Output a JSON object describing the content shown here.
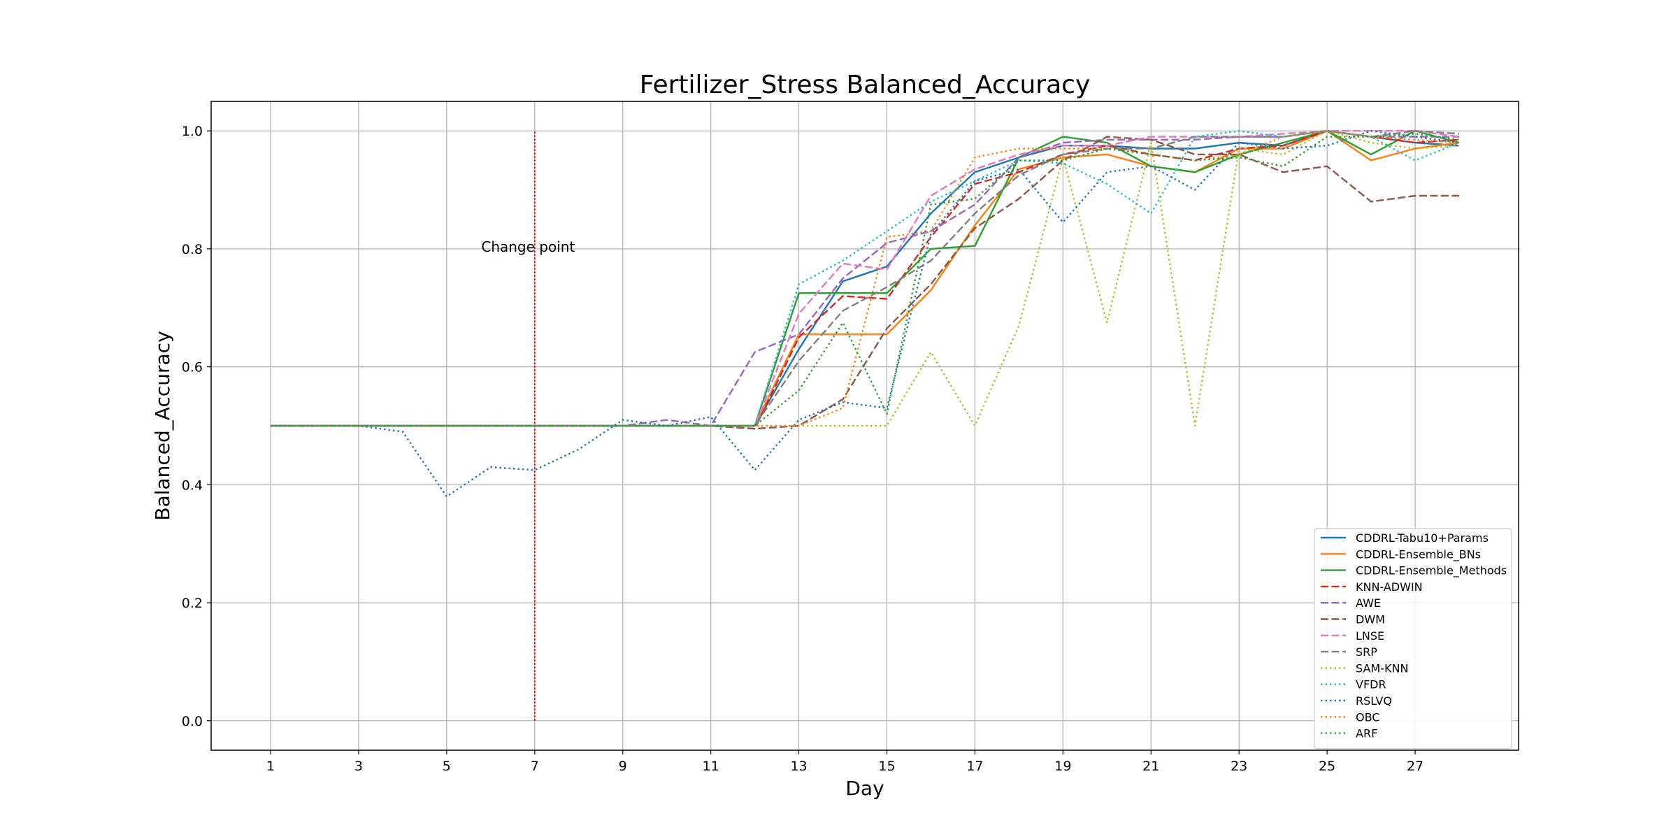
{
  "chart_data": {
    "type": "line",
    "title": "Fertilizer_Stress Balanced_Accuracy",
    "xlabel": "Day",
    "ylabel": "Balanced_Accuracy",
    "xlim": [
      -0.35,
      29.35
    ],
    "ylim": [
      -0.05,
      1.05
    ],
    "x_ticks": [
      1,
      3,
      5,
      7,
      9,
      11,
      13,
      15,
      17,
      19,
      21,
      23,
      25,
      27
    ],
    "y_ticks": [
      0.0,
      0.2,
      0.4,
      0.6,
      0.8,
      1.0
    ],
    "y_tick_labels": [
      "0.0",
      "0.2",
      "0.4",
      "0.6",
      "0.8",
      "1.0"
    ],
    "grid": true,
    "legend_position": "lower-right",
    "x": [
      1,
      2,
      3,
      4,
      5,
      6,
      7,
      8,
      9,
      10,
      11,
      12,
      13,
      14,
      15,
      16,
      17,
      18,
      19,
      20,
      21,
      22,
      23,
      24,
      25,
      26,
      27,
      28
    ],
    "annotations": [
      {
        "type": "vline",
        "x": 7,
        "y0": 0,
        "y1": 1,
        "color": "#ff0000",
        "style": "dotted"
      },
      {
        "type": "text",
        "text": "Change point",
        "x": 6.85,
        "y": 0.795
      }
    ],
    "series": [
      {
        "name": "CDDRL-Tabu10+Params",
        "color": "#1f77b4",
        "style": "solid",
        "values": [
          0.5,
          0.5,
          0.5,
          0.5,
          0.5,
          0.5,
          0.5,
          0.5,
          0.5,
          0.5,
          0.5,
          0.5,
          0.63,
          0.745,
          0.77,
          0.86,
          0.93,
          0.955,
          0.975,
          0.975,
          0.97,
          0.97,
          0.98,
          0.975,
          1.0,
          0.99,
          0.98,
          0.975
        ]
      },
      {
        "name": "CDDRL-Ensemble_BNs",
        "color": "#ff7f0e",
        "style": "solid",
        "values": [
          0.5,
          0.5,
          0.5,
          0.5,
          0.5,
          0.5,
          0.5,
          0.5,
          0.5,
          0.5,
          0.5,
          0.5,
          0.655,
          0.655,
          0.655,
          0.73,
          0.84,
          0.935,
          0.955,
          0.96,
          0.94,
          0.93,
          0.97,
          0.97,
          1.0,
          0.95,
          0.97,
          0.98
        ]
      },
      {
        "name": "CDDRL-Ensemble_Methods",
        "color": "#2ca02c",
        "style": "solid",
        "values": [
          0.5,
          0.5,
          0.5,
          0.5,
          0.5,
          0.5,
          0.5,
          0.5,
          0.5,
          0.5,
          0.5,
          0.5,
          0.725,
          0.725,
          0.725,
          0.8,
          0.805,
          0.955,
          0.99,
          0.98,
          0.94,
          0.93,
          0.96,
          0.98,
          1.0,
          0.96,
          1.0,
          0.98
        ]
      },
      {
        "name": "KNN-ADWIN",
        "color": "#d62728",
        "style": "dashed",
        "values": [
          0.5,
          0.5,
          0.5,
          0.5,
          0.5,
          0.5,
          0.5,
          0.5,
          0.5,
          0.5,
          0.5,
          0.495,
          0.65,
          0.72,
          0.715,
          0.82,
          0.91,
          0.93,
          0.96,
          0.975,
          0.96,
          0.95,
          0.97,
          0.975,
          1.0,
          0.99,
          0.98,
          0.985
        ]
      },
      {
        "name": "AWE",
        "color": "#9467bd",
        "style": "dashed",
        "values": [
          0.5,
          0.5,
          0.5,
          0.5,
          0.5,
          0.5,
          0.5,
          0.5,
          0.5,
          0.51,
          0.5,
          0.625,
          0.655,
          0.75,
          0.81,
          0.83,
          0.875,
          0.955,
          0.98,
          0.985,
          0.985,
          0.985,
          0.99,
          0.99,
          1.0,
          0.99,
          0.99,
          0.99
        ]
      },
      {
        "name": "DWM",
        "color": "#8c564b",
        "style": "dashed",
        "values": [
          0.5,
          0.5,
          0.5,
          0.5,
          0.5,
          0.5,
          0.5,
          0.5,
          0.5,
          0.5,
          0.5,
          0.495,
          0.5,
          0.545,
          0.665,
          0.74,
          0.835,
          0.885,
          0.95,
          0.99,
          0.985,
          0.96,
          0.96,
          0.93,
          0.94,
          0.88,
          0.89,
          0.89
        ]
      },
      {
        "name": "LNSE",
        "color": "#e377c2",
        "style": "dashed",
        "values": [
          0.5,
          0.5,
          0.5,
          0.5,
          0.5,
          0.5,
          0.5,
          0.5,
          0.5,
          0.5,
          0.5,
          0.5,
          0.69,
          0.775,
          0.765,
          0.89,
          0.935,
          0.96,
          0.975,
          0.975,
          0.99,
          0.99,
          0.99,
          0.995,
          1.0,
          1.0,
          1.0,
          0.99
        ]
      },
      {
        "name": "SRP",
        "color": "#7f7f7f",
        "style": "dashed",
        "values": [
          0.5,
          0.5,
          0.5,
          0.5,
          0.5,
          0.5,
          0.5,
          0.5,
          0.5,
          0.5,
          0.5,
          0.5,
          0.61,
          0.695,
          0.735,
          0.78,
          0.86,
          0.925,
          0.96,
          0.97,
          0.97,
          0.99,
          0.99,
          0.99,
          1.0,
          0.99,
          1.0,
          0.995
        ]
      },
      {
        "name": "SAM-KNN",
        "color": "#bcbd22",
        "style": "dotted",
        "values": [
          0.5,
          0.5,
          0.5,
          0.5,
          0.5,
          0.5,
          0.5,
          0.5,
          0.5,
          0.5,
          0.5,
          0.5,
          0.5,
          0.5,
          0.5,
          0.625,
          0.5,
          0.67,
          0.955,
          0.675,
          0.98,
          0.5,
          0.97,
          0.96,
          1.0,
          0.98,
          0.97,
          0.975
        ]
      },
      {
        "name": "VFDR",
        "color": "#17becf",
        "style": "dotted",
        "values": [
          0.5,
          0.5,
          0.5,
          0.5,
          0.5,
          0.5,
          0.5,
          0.5,
          0.5,
          0.5,
          0.5,
          0.5,
          0.74,
          0.78,
          0.83,
          0.88,
          0.915,
          0.95,
          0.945,
          0.91,
          0.86,
          0.99,
          1.0,
          0.99,
          1.0,
          0.99,
          0.95,
          0.98
        ]
      },
      {
        "name": "RSLVQ",
        "color": "#1f77b4",
        "style": "dotted",
        "values": [
          0.5,
          0.5,
          0.5,
          0.49,
          0.38,
          0.43,
          0.425,
          0.46,
          0.51,
          0.5,
          0.515,
          0.425,
          0.51,
          0.54,
          0.53,
          0.825,
          0.915,
          0.935,
          0.845,
          0.93,
          0.94,
          0.9,
          0.98,
          0.97,
          0.975,
          1.0,
          0.99,
          0.98
        ]
      },
      {
        "name": "OBC",
        "color": "#ff7f0e",
        "style": "dotted",
        "values": [
          0.5,
          0.5,
          0.5,
          0.5,
          0.5,
          0.5,
          0.5,
          0.5,
          0.5,
          0.5,
          0.5,
          0.5,
          0.5,
          0.53,
          0.82,
          0.83,
          0.955,
          0.97,
          0.97,
          0.97,
          0.96,
          0.95,
          0.96,
          0.99,
          1.0,
          0.99,
          0.985,
          0.98
        ]
      },
      {
        "name": "ARF",
        "color": "#2ca02c",
        "style": "dotted",
        "values": [
          0.5,
          0.5,
          0.5,
          0.5,
          0.5,
          0.5,
          0.5,
          0.5,
          0.5,
          0.5,
          0.5,
          0.5,
          0.56,
          0.675,
          0.52,
          0.875,
          0.885,
          0.95,
          0.95,
          0.97,
          0.96,
          0.95,
          0.955,
          0.94,
          0.99,
          0.99,
          0.995,
          0.985
        ]
      }
    ]
  }
}
